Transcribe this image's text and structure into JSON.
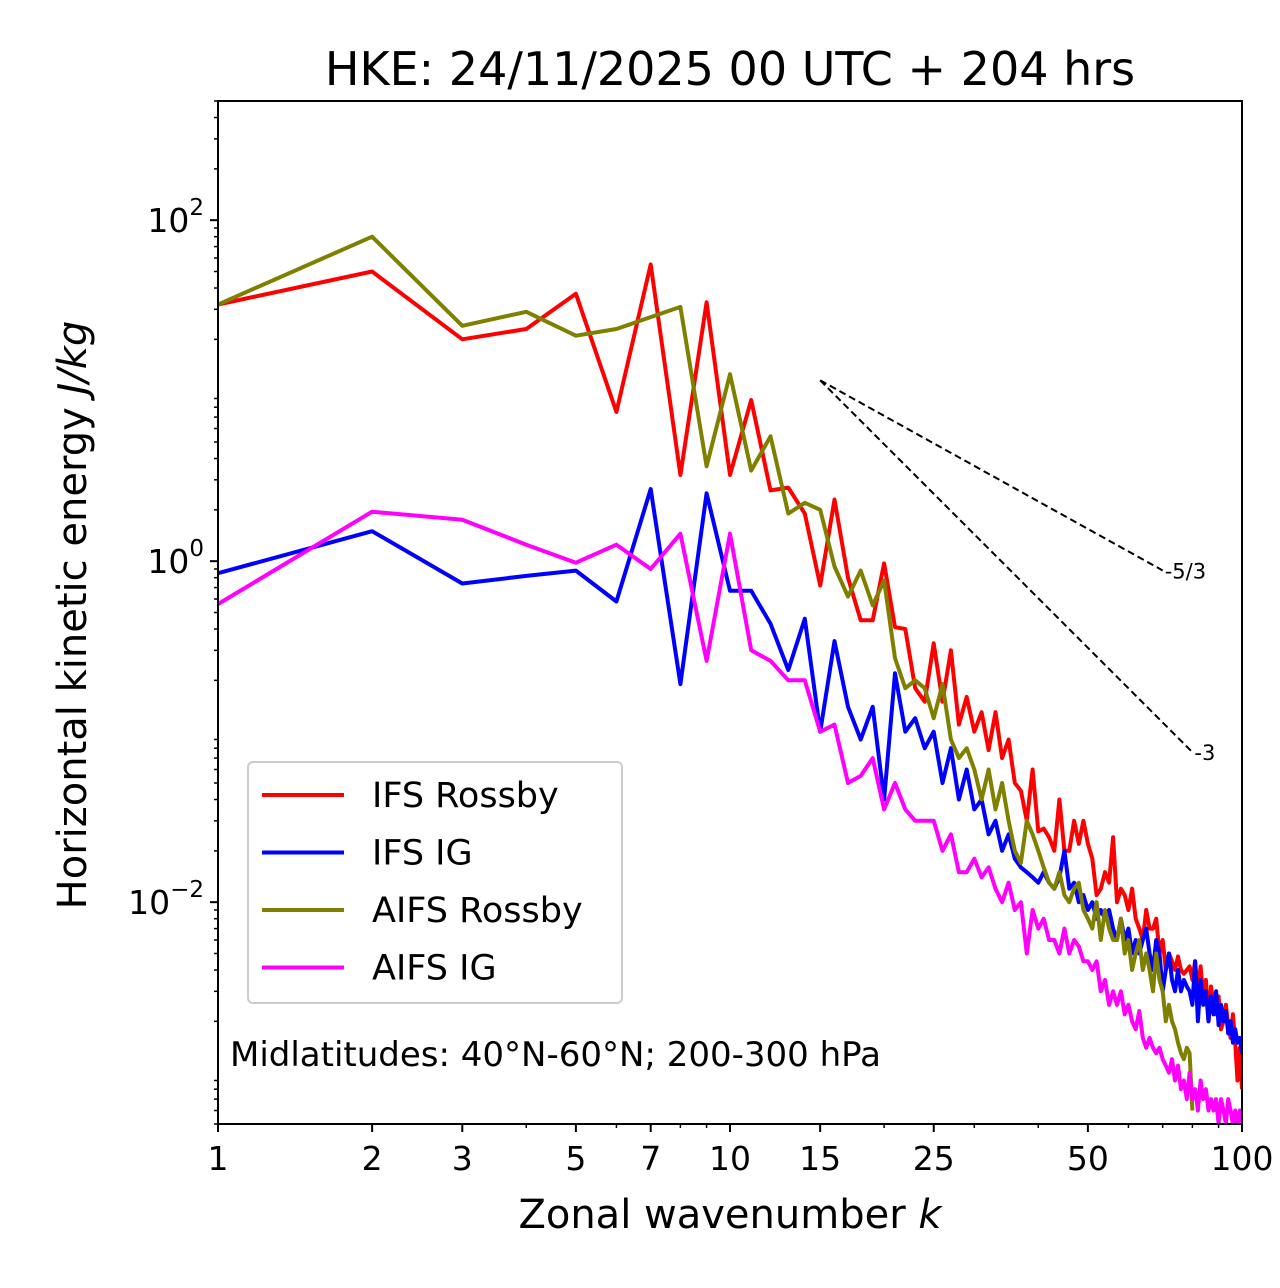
{
  "chart_data": {
    "type": "line",
    "title": "HKE: 24/11/2025 00 UTC + 204 hrs",
    "xlabel": "Zonal wavenumber",
    "xlabel_var": "k",
    "ylabel": "Horizontal kinetic energy",
    "ylabel_units": "J/kg",
    "xscale": "log",
    "yscale": "log",
    "xlim": [
      1,
      100
    ],
    "ylim": [
      0.0005,
      500
    ],
    "xticks": [
      1,
      2,
      3,
      5,
      7,
      10,
      15,
      25,
      50,
      100
    ],
    "xtick_labels": [
      "1",
      "2",
      "3",
      "5",
      "7",
      "10",
      "15",
      "25",
      "50",
      "100"
    ],
    "yticks": [
      {
        "value": 100,
        "base": "10",
        "exp": "2"
      },
      {
        "value": 1,
        "base": "10",
        "exp": "0"
      },
      {
        "value": 0.01,
        "base": "10",
        "exp": "−2"
      }
    ],
    "annotation": "Midlatitudes: 40°N-60°N; 200-300 hPa",
    "legend_position": "lower-left",
    "reference_lines": [
      {
        "label": "-5/3",
        "slope": -1.6667,
        "x_start": 15,
        "y_start": 11.5,
        "x_end": 70
      },
      {
        "label": "-3",
        "slope": -3,
        "x_start": 15,
        "y_start": 11.5,
        "x_end": 80
      }
    ],
    "series": [
      {
        "name": "IFS Rossby",
        "color": "#ff0000",
        "x": [
          1,
          2,
          3,
          4,
          5,
          6,
          7,
          8,
          9,
          10,
          11,
          12,
          13,
          14,
          15,
          16,
          17,
          18,
          19,
          20,
          21,
          22,
          23,
          24,
          25,
          26,
          27,
          28,
          29,
          30,
          31,
          32,
          33,
          34,
          35,
          36,
          37,
          38,
          39,
          40,
          41,
          42,
          43,
          44,
          45,
          46,
          47,
          48,
          49,
          50,
          51,
          52,
          53,
          54,
          55,
          56,
          57,
          58,
          59,
          60,
          61,
          62,
          63,
          64,
          65,
          66,
          67,
          68,
          69,
          70,
          71,
          72,
          73,
          74,
          75,
          76,
          77,
          78,
          79,
          80,
          81,
          82,
          83,
          84,
          85,
          86,
          87,
          88,
          89,
          90,
          91,
          92,
          93,
          94,
          95,
          96,
          97,
          98,
          99,
          100
        ],
        "y": [
          32,
          50,
          20,
          23,
          37,
          7.5,
          55,
          3.2,
          33,
          3.2,
          8.8,
          2.6,
          2.7,
          1.9,
          0.72,
          2.3,
          0.8,
          0.45,
          0.45,
          0.97,
          0.41,
          0.4,
          0.18,
          0.15,
          0.33,
          0.15,
          0.3,
          0.11,
          0.16,
          0.1,
          0.13,
          0.078,
          0.13,
          0.07,
          0.09,
          0.05,
          0.045,
          0.03,
          0.06,
          0.026,
          0.027,
          0.024,
          0.02,
          0.04,
          0.02,
          0.02,
          0.03,
          0.022,
          0.03,
          0.022,
          0.018,
          0.011,
          0.012,
          0.015,
          0.013,
          0.024,
          0.01,
          0.012,
          0.011,
          0.009,
          0.012,
          0.008,
          0.007,
          0.006,
          0.009,
          0.007,
          0.007,
          0.008,
          0.005,
          0.006,
          0.004,
          0.005,
          0.0045,
          0.004,
          0.0048,
          0.004,
          0.0038,
          0.004,
          0.0042,
          0.0035,
          0.0045,
          0.003,
          0.0042,
          0.0028,
          0.0035,
          0.002,
          0.0032,
          0.0025,
          0.0022,
          0.0028,
          0.0018,
          0.002,
          0.0025,
          0.0019,
          0.0016,
          0.0022,
          0.0015,
          0.0009,
          0.0014,
          0.0008
        ]
      },
      {
        "name": "IFS IG",
        "color": "#0000ff",
        "x": [
          1,
          2,
          3,
          4,
          5,
          6,
          7,
          8,
          9,
          10,
          11,
          12,
          13,
          14,
          15,
          16,
          17,
          18,
          19,
          20,
          21,
          22,
          23,
          24,
          25,
          26,
          27,
          28,
          29,
          30,
          31,
          32,
          33,
          34,
          35,
          36,
          37,
          38,
          39,
          40,
          41,
          42,
          43,
          44,
          45,
          46,
          47,
          48,
          49,
          50,
          51,
          52,
          53,
          54,
          55,
          56,
          57,
          58,
          59,
          60,
          61,
          62,
          63,
          64,
          65,
          66,
          67,
          68,
          69,
          70,
          71,
          72,
          73,
          74,
          75,
          76,
          77,
          78,
          79,
          80,
          81,
          82,
          83,
          84,
          85,
          86,
          87,
          88,
          89,
          90,
          91,
          92,
          93,
          94,
          95,
          96,
          97,
          98,
          99,
          100
        ],
        "y": [
          0.85,
          1.5,
          0.74,
          0.82,
          0.88,
          0.58,
          2.65,
          0.19,
          2.5,
          0.67,
          0.67,
          0.43,
          0.23,
          0.46,
          0.1,
          0.34,
          0.14,
          0.09,
          0.14,
          0.04,
          0.22,
          0.1,
          0.12,
          0.08,
          0.1,
          0.05,
          0.08,
          0.04,
          0.06,
          0.035,
          0.04,
          0.025,
          0.03,
          0.02,
          0.025,
          0.018,
          0.016,
          0.015,
          0.014,
          0.013,
          0.015,
          0.013,
          0.012,
          0.014,
          0.02,
          0.012,
          0.013,
          0.01,
          0.011,
          0.009,
          0.01,
          0.008,
          0.009,
          0.008,
          0.009,
          0.007,
          0.006,
          0.008,
          0.006,
          0.007,
          0.005,
          0.006,
          0.005,
          0.006,
          0.007,
          0.005,
          0.004,
          0.006,
          0.005,
          0.003,
          0.004,
          0.005,
          0.0035,
          0.003,
          0.004,
          0.003,
          0.0035,
          0.0032,
          0.003,
          0.0025,
          0.0045,
          0.002,
          0.0035,
          0.0025,
          0.003,
          0.002,
          0.0028,
          0.0022,
          0.003,
          0.0019,
          0.0025,
          0.002,
          0.0023,
          0.0017,
          0.002,
          0.0015,
          0.0018,
          0.0015,
          0.0016,
          0.0013
        ]
      },
      {
        "name": "AIFS Rossby",
        "color": "#808000",
        "x": [
          1,
          2,
          3,
          4,
          5,
          6,
          7,
          8,
          9,
          10,
          11,
          12,
          13,
          14,
          15,
          16,
          17,
          18,
          19,
          20,
          21,
          22,
          23,
          24,
          25,
          26,
          27,
          28,
          29,
          30,
          31,
          32,
          33,
          34,
          35,
          36,
          37,
          38,
          39,
          40,
          41,
          42,
          43,
          44,
          45,
          46,
          47,
          48,
          49,
          50,
          51,
          52,
          53,
          54,
          55,
          56,
          57,
          58,
          59,
          60,
          61,
          62,
          63,
          64,
          65,
          66,
          67,
          68,
          69,
          70,
          71,
          72,
          73,
          74,
          75,
          76,
          77,
          78,
          79,
          80
        ],
        "y": [
          32,
          80,
          24,
          29,
          21,
          23,
          27,
          31,
          3.6,
          12.5,
          3.4,
          5.4,
          1.9,
          2.2,
          2.0,
          0.93,
          0.62,
          0.88,
          0.55,
          0.77,
          0.27,
          0.18,
          0.2,
          0.18,
          0.12,
          0.19,
          0.09,
          0.07,
          0.08,
          0.06,
          0.04,
          0.06,
          0.035,
          0.05,
          0.03,
          0.02,
          0.017,
          0.03,
          0.025,
          0.02,
          0.016,
          0.013,
          0.012,
          0.015,
          0.011,
          0.01,
          0.012,
          0.013,
          0.009,
          0.008,
          0.007,
          0.01,
          0.006,
          0.009,
          0.007,
          0.006,
          0.006,
          0.008,
          0.005,
          0.006,
          0.004,
          0.005,
          0.006,
          0.004,
          0.005,
          0.004,
          0.003,
          0.005,
          0.0035,
          0.003,
          0.002,
          0.0025,
          0.002,
          0.0018,
          0.0015,
          0.0013,
          0.0012,
          0.0014,
          0.0013,
          0.0006
        ]
      },
      {
        "name": "AIFS IG",
        "color": "#ff00ff",
        "x": [
          1,
          2,
          3,
          4,
          5,
          6,
          7,
          8,
          9,
          10,
          11,
          12,
          13,
          14,
          15,
          16,
          17,
          18,
          19,
          20,
          21,
          22,
          23,
          24,
          25,
          26,
          27,
          28,
          29,
          30,
          31,
          32,
          33,
          34,
          35,
          36,
          37,
          38,
          39,
          40,
          41,
          42,
          43,
          44,
          45,
          46,
          47,
          48,
          49,
          50,
          51,
          52,
          53,
          54,
          55,
          56,
          57,
          58,
          59,
          60,
          61,
          62,
          63,
          64,
          65,
          66,
          67,
          68,
          69,
          70,
          71,
          72,
          73,
          74,
          75,
          76,
          77,
          78,
          79,
          80,
          81,
          82,
          83,
          84,
          85,
          86,
          87,
          88,
          89,
          90,
          91,
          92,
          93,
          94,
          95,
          96,
          97,
          98,
          99,
          100
        ],
        "y": [
          0.56,
          1.95,
          1.75,
          1.25,
          0.98,
          1.25,
          0.9,
          1.45,
          0.26,
          1.45,
          0.3,
          0.26,
          0.2,
          0.2,
          0.1,
          0.11,
          0.05,
          0.055,
          0.07,
          0.035,
          0.05,
          0.035,
          0.03,
          0.03,
          0.03,
          0.02,
          0.025,
          0.015,
          0.015,
          0.018,
          0.014,
          0.016,
          0.012,
          0.01,
          0.013,
          0.009,
          0.01,
          0.005,
          0.009,
          0.007,
          0.008,
          0.006,
          0.006,
          0.005,
          0.007,
          0.005,
          0.006,
          0.0055,
          0.0045,
          0.0045,
          0.004,
          0.0045,
          0.003,
          0.0035,
          0.0025,
          0.003,
          0.0025,
          0.003,
          0.0022,
          0.0025,
          0.002,
          0.0018,
          0.0023,
          0.0016,
          0.0014,
          0.0016,
          0.0014,
          0.0013,
          0.0014,
          0.0012,
          0.0011,
          0.001,
          0.0012,
          0.0009,
          0.0011,
          0.0008,
          0.0009,
          0.0007,
          0.001,
          0.0007,
          0.0008,
          0.0006,
          0.0009,
          0.0007,
          0.0008,
          0.0006,
          0.0007,
          0.0006,
          0.0007,
          0.0005,
          0.0007,
          0.0006,
          0.0005,
          0.0007,
          0.0006,
          0.0005,
          0.0006,
          0.0005,
          0.0006,
          0.0005
        ]
      }
    ]
  }
}
